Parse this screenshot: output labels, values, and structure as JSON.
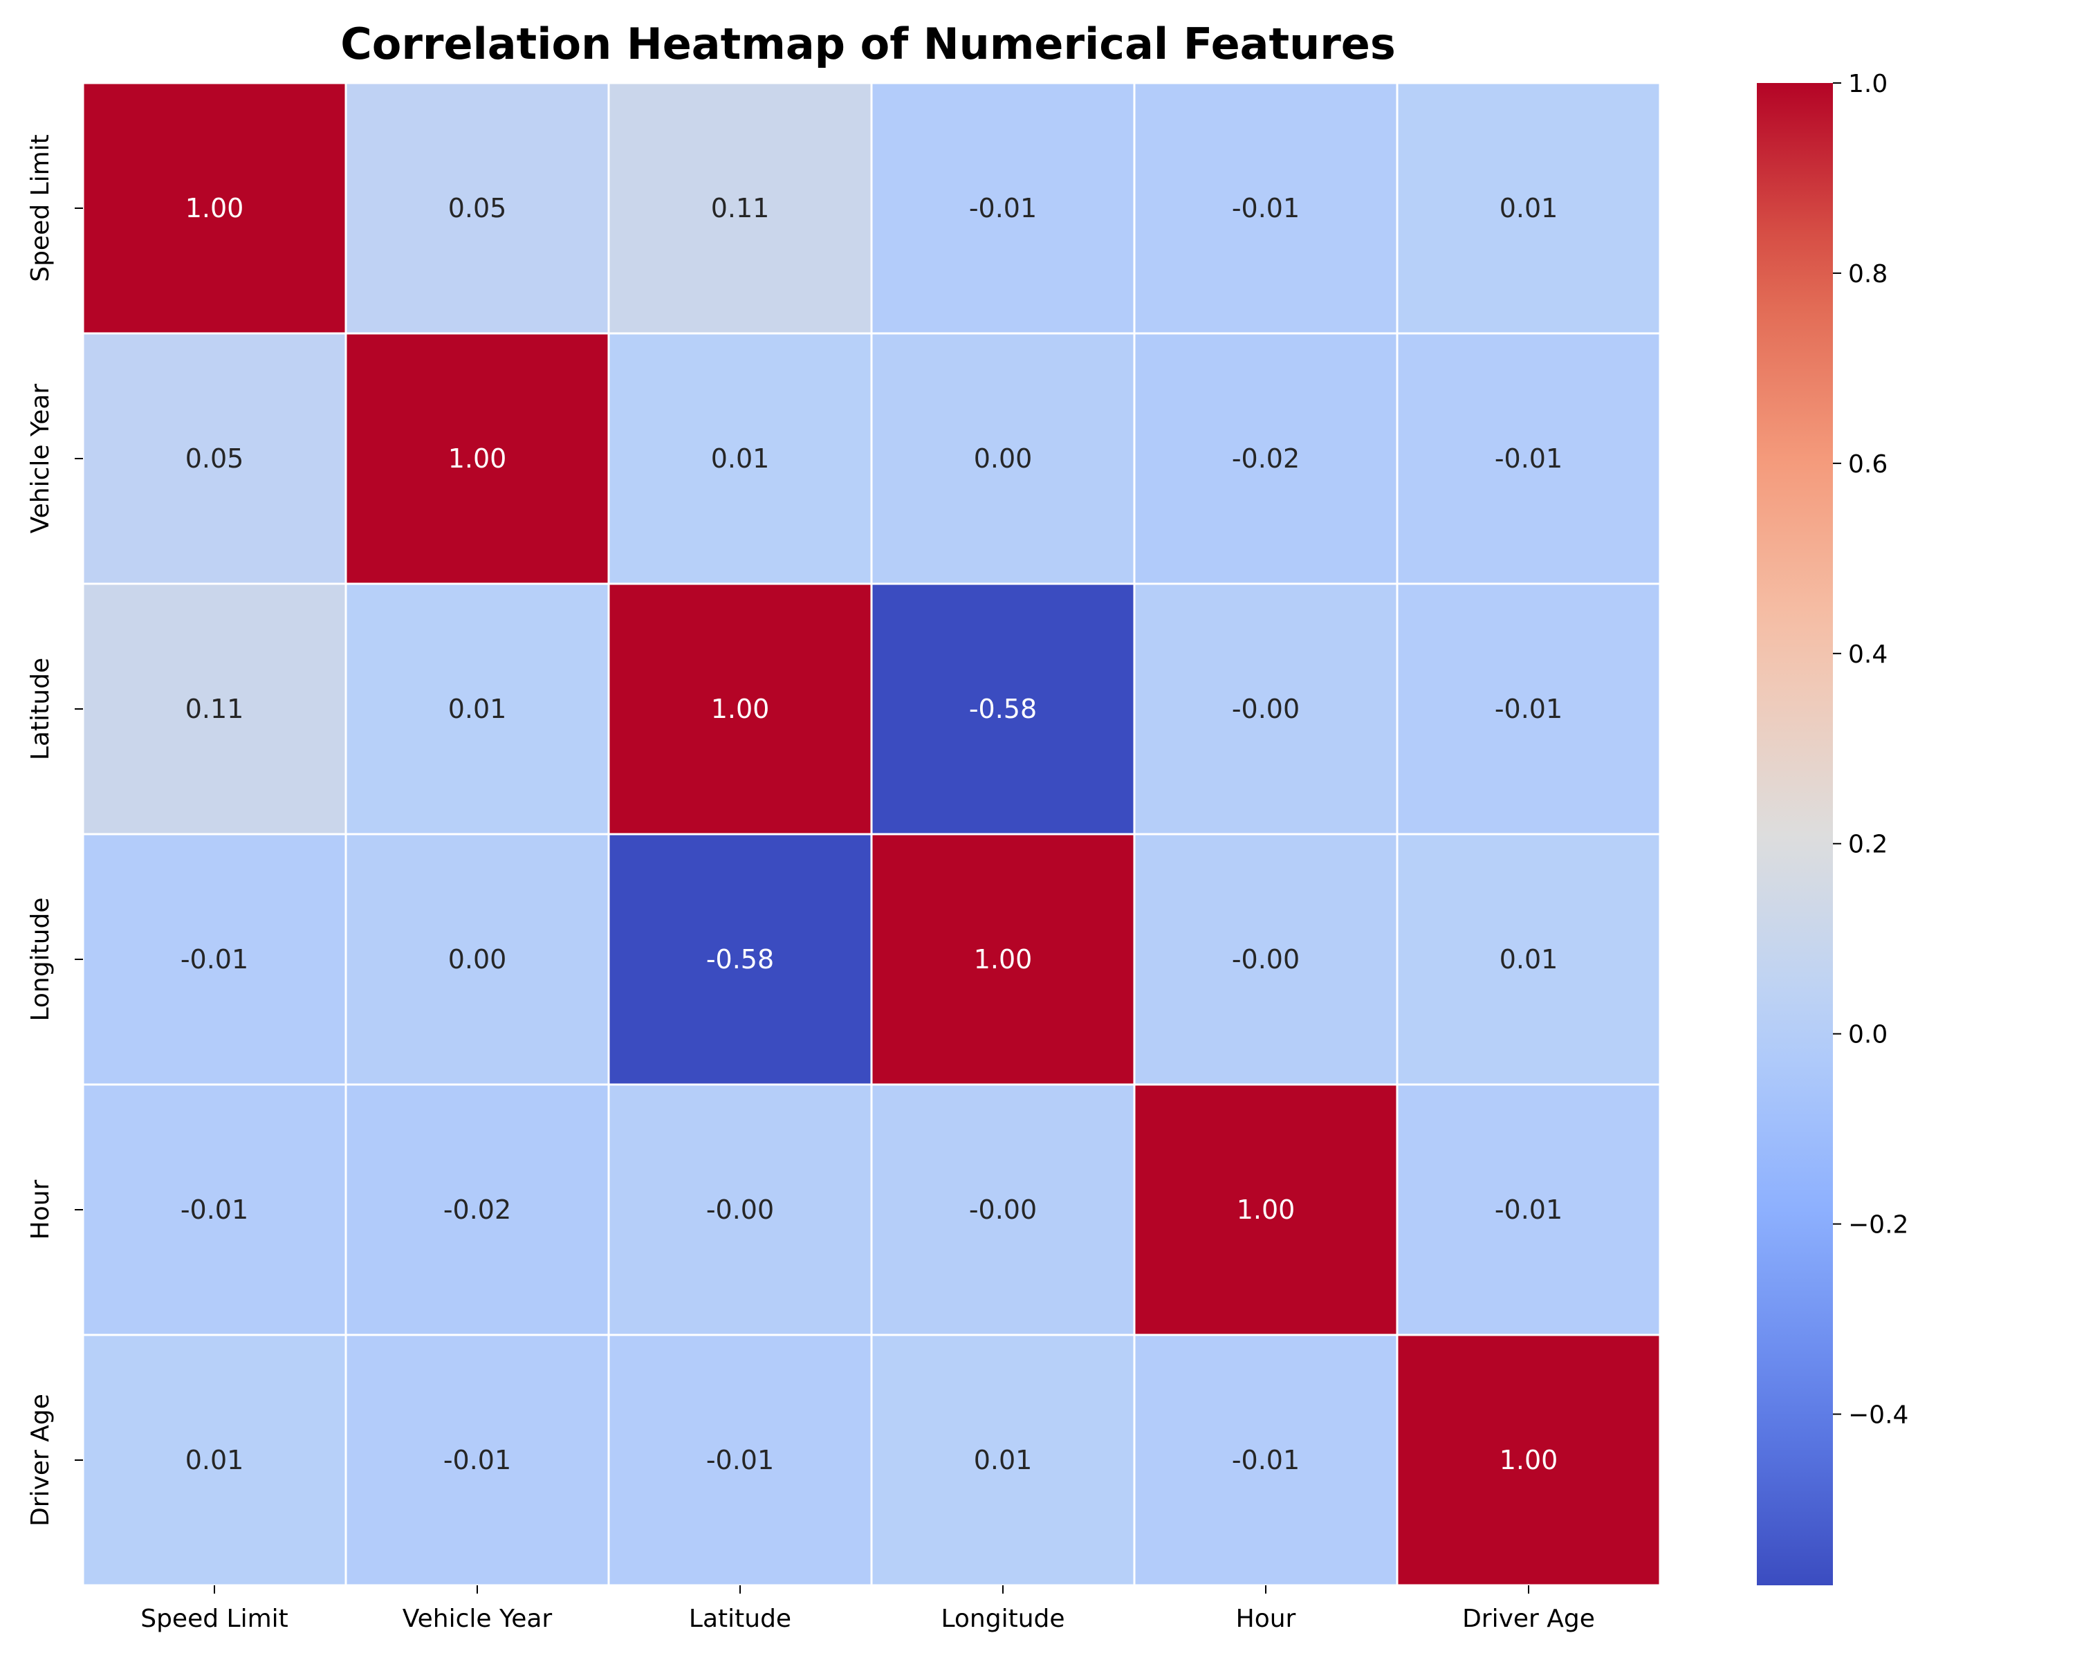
{
  "chart_data": {
    "type": "heatmap",
    "title": "Correlation Heatmap of Numerical Features",
    "xlabel": "",
    "ylabel": "",
    "rows": [
      "Speed Limit",
      "Vehicle Year",
      "Latitude",
      "Longitude",
      "Hour",
      "Driver Age"
    ],
    "columns": [
      "Speed Limit",
      "Vehicle Year",
      "Latitude",
      "Longitude",
      "Hour",
      "Driver Age"
    ],
    "values": [
      [
        1.0,
        0.05,
        0.11,
        -0.01,
        -0.01,
        0.01
      ],
      [
        0.05,
        1.0,
        0.01,
        0.0,
        -0.02,
        -0.01
      ],
      [
        0.11,
        0.01,
        1.0,
        -0.58,
        -0.0,
        -0.01
      ],
      [
        -0.01,
        0.0,
        -0.58,
        1.0,
        -0.0,
        0.01
      ],
      [
        -0.01,
        -0.02,
        -0.0,
        -0.0,
        1.0,
        -0.01
      ],
      [
        0.01,
        -0.01,
        -0.01,
        0.01,
        -0.01,
        1.0
      ]
    ],
    "cell_labels": [
      [
        "1.00",
        "0.05",
        "0.11",
        "-0.01",
        "-0.01",
        "0.01"
      ],
      [
        "0.05",
        "1.00",
        "0.01",
        "0.00",
        "-0.02",
        "-0.01"
      ],
      [
        "0.11",
        "0.01",
        "1.00",
        "-0.58",
        "-0.00",
        "-0.01"
      ],
      [
        "-0.01",
        "0.00",
        "-0.58",
        "1.00",
        "-0.00",
        "0.01"
      ],
      [
        "-0.01",
        "-0.02",
        "-0.00",
        "-0.00",
        "1.00",
        "-0.01"
      ],
      [
        "0.01",
        "-0.01",
        "-0.01",
        "0.01",
        "-0.01",
        "1.00"
      ]
    ],
    "colormap": "coolwarm",
    "colorbar": {
      "range": [
        -0.58,
        1.0
      ],
      "ticks": [
        -0.4,
        -0.2,
        0.0,
        0.2,
        0.4,
        0.6,
        0.8,
        1.0
      ],
      "tick_labels": [
        "−0.4",
        "−0.2",
        "0.0",
        "0.2",
        "0.4",
        "0.6",
        "0.8",
        "1.0"
      ],
      "placement": "right"
    },
    "grid": false
  }
}
